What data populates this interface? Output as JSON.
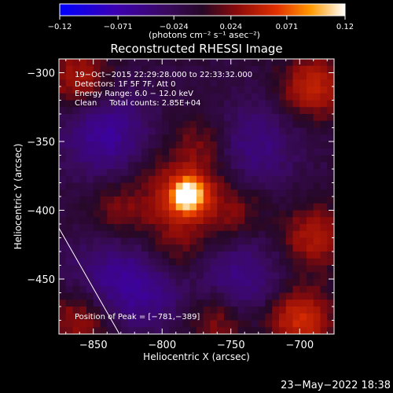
{
  "chart_data": {
    "type": "heatmap",
    "title": "Reconstructed RHESSI Image",
    "xlabel": "Heliocentric X (arcsec)",
    "ylabel": "Heliocentric Y (arcsec)",
    "xlim": [
      -875,
      -675
    ],
    "ylim": [
      -490,
      -290
    ],
    "x_ticks": [
      {
        "value": -850,
        "label": "−850"
      },
      {
        "value": -800,
        "label": "−800"
      },
      {
        "value": -750,
        "label": "−750"
      },
      {
        "value": -700,
        "label": "−700"
      }
    ],
    "y_ticks": [
      {
        "value": -300,
        "label": "−300"
      },
      {
        "value": -350,
        "label": "−350"
      },
      {
        "value": -400,
        "label": "−400"
      },
      {
        "value": -450,
        "label": "−450"
      }
    ],
    "colorbar": {
      "range": [
        -0.12,
        0.12
      ],
      "ticks": [
        {
          "value": -0.12,
          "label": "−0.12"
        },
        {
          "value": -0.071,
          "label": "−0.071"
        },
        {
          "value": -0.024,
          "label": "−0.024"
        },
        {
          "value": 0.024,
          "label": "0.024"
        },
        {
          "value": 0.071,
          "label": "0.071"
        },
        {
          "value": 0.12,
          "label": "0.12"
        }
      ],
      "unit_label": "(photons cm⁻² s⁻¹ asec⁻²)"
    },
    "annotations": [
      "19−Oct−2015 22:29:28.000 to 22:33:32.000",
      "Detectors: 1F 5F 7F, Att 0",
      "Energy Range: 6.0 − 12.0 keV",
      "Clean     Total counts: 2.85E+04"
    ],
    "peak_label": "Position of Peak = [−781,−389]",
    "peak": {
      "x": -781,
      "y": -389,
      "value": 0.12
    },
    "limb_line": [
      {
        "x": -875,
        "y": -413
      },
      {
        "x": -831,
        "y": -490
      }
    ],
    "features": {
      "background": -0.01,
      "source_core": {
        "x": -781,
        "y": -389,
        "value": 0.12,
        "width": 10
      },
      "source_body": {
        "x": -788,
        "y": -395,
        "value": 0.04,
        "width": 30
      },
      "lobes": [
        {
          "x": -770,
          "y": -352,
          "value": 0.025
        },
        {
          "x": -745,
          "y": -400,
          "value": 0.022
        },
        {
          "x": -790,
          "y": -435,
          "value": 0.018
        },
        {
          "x": -835,
          "y": -400,
          "value": 0.02
        }
      ],
      "negative_ring": [
        {
          "x": -840,
          "y": -345,
          "value": -0.05
        },
        {
          "x": -735,
          "y": -355,
          "value": -0.035
        },
        {
          "x": -745,
          "y": -450,
          "value": -0.04
        },
        {
          "x": -810,
          "y": -455,
          "value": -0.035
        },
        {
          "x": -840,
          "y": -450,
          "value": -0.03
        }
      ],
      "edge_positive": [
        {
          "x": -860,
          "y": -305,
          "value": 0.05
        },
        {
          "x": -690,
          "y": -310,
          "value": 0.06
        },
        {
          "x": -690,
          "y": -420,
          "value": 0.05
        },
        {
          "x": -700,
          "y": -480,
          "value": 0.07
        },
        {
          "x": -760,
          "y": -480,
          "value": 0.04
        },
        {
          "x": -860,
          "y": -480,
          "value": 0.045
        }
      ]
    }
  },
  "footer": {
    "date": "23−May−2022 18:38"
  }
}
